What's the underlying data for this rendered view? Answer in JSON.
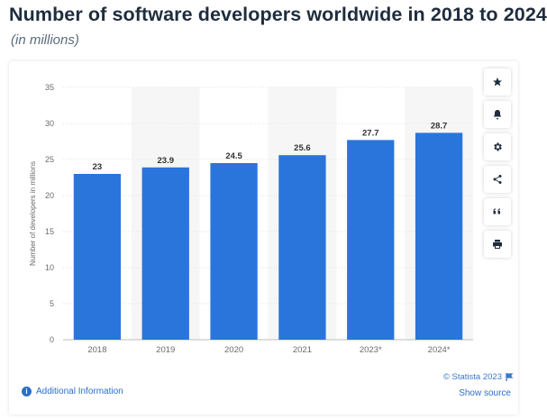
{
  "header": {
    "title": "Number of software developers worldwide in 2018 to 2024",
    "subtitle": "(in millions)"
  },
  "toolbar": {
    "icons": [
      "star-icon",
      "bell-icon",
      "gear-icon",
      "share-icon",
      "quote-icon",
      "print-icon"
    ]
  },
  "footer": {
    "copyright": "© Statista 2023",
    "show_source": "Show source",
    "additional_info": "Additional Information"
  },
  "colors": {
    "bar": "#2a75dc",
    "band": "#f6f6f6",
    "grid": "#e3e3e3",
    "axis_text": "#6b6b6b",
    "label_text": "#333333"
  },
  "chart_data": {
    "type": "bar",
    "categories": [
      "2018",
      "2019",
      "2020",
      "2021",
      "2023*",
      "2024*"
    ],
    "values": [
      23,
      23.9,
      24.5,
      25.6,
      27.7,
      28.7
    ],
    "value_labels": [
      "23",
      "23.9",
      "24.5",
      "25.6",
      "27.7",
      "28.7"
    ],
    "ylabel": "Number of developers in millions",
    "ylim": [
      0,
      35
    ],
    "yticks": [
      0,
      5,
      10,
      15,
      20,
      25,
      30,
      35
    ],
    "grid": true,
    "alternating_bands": true
  }
}
